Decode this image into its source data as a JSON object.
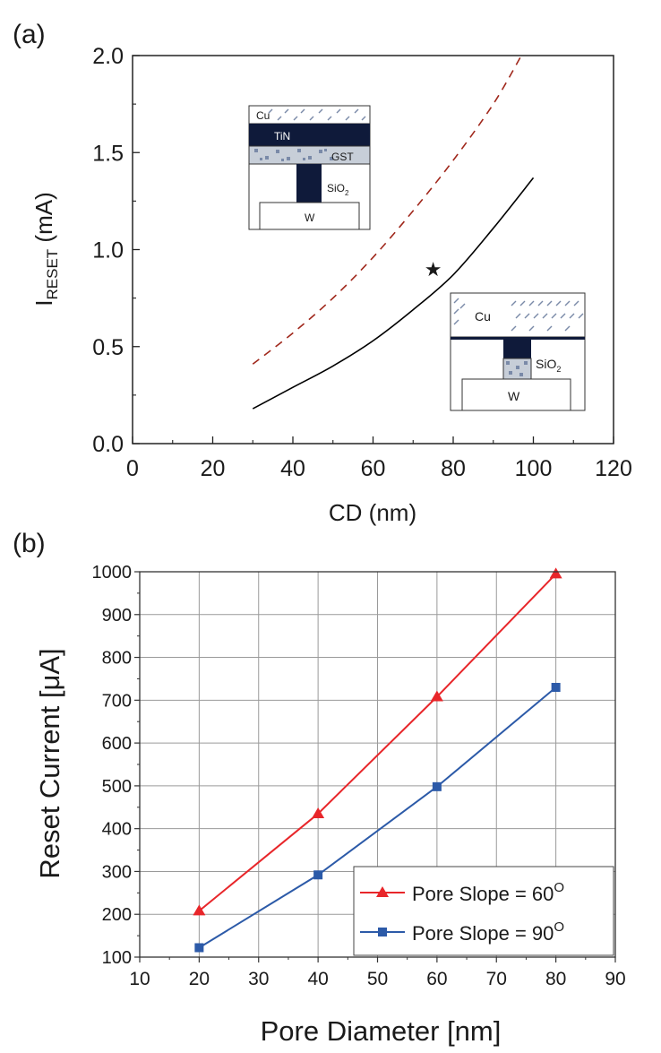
{
  "chart_data": [
    {
      "panel_label": "(a)",
      "type": "line",
      "xlabel": "CD (nm)",
      "ylabel": "I",
      "ylabel_sub": "RESET",
      "ylabel_unit": " (mA)",
      "xlim": [
        0,
        120
      ],
      "ylim": [
        0.0,
        2.0
      ],
      "x_ticks": [
        0,
        20,
        40,
        60,
        80,
        100,
        120
      ],
      "x_tick_labels": [
        "0",
        "20",
        "40",
        "60",
        "80",
        "100",
        "120"
      ],
      "y_ticks": [
        0.0,
        0.5,
        1.0,
        1.5,
        2.0
      ],
      "y_tick_labels": [
        "0.0",
        "0.5",
        "1.0",
        "1.5",
        "2.0"
      ],
      "grid": false,
      "series": [
        {
          "name": "solid",
          "style": "solid",
          "color": "#000000",
          "x": [
            30,
            40,
            50,
            60,
            70,
            80,
            90,
            100
          ],
          "y": [
            0.18,
            0.29,
            0.4,
            0.53,
            0.69,
            0.87,
            1.11,
            1.37
          ]
        },
        {
          "name": "dashed",
          "style": "dashed",
          "color": "#a0281c",
          "x": [
            30,
            40,
            50,
            60,
            70,
            80,
            90,
            97
          ],
          "y": [
            0.41,
            0.57,
            0.75,
            0.96,
            1.2,
            1.46,
            1.75,
            2.0
          ]
        }
      ],
      "marker_point": {
        "symbol": "★",
        "x": 75,
        "y": 0.9
      },
      "inset_top": {
        "labels": {
          "cu": "Cu",
          "tin": "TiN",
          "gst": "GST",
          "sio2": "SiO",
          "sio2_sub": "2",
          "w": "W"
        }
      },
      "inset_bottom": {
        "labels": {
          "cu": "Cu",
          "sio2": "SiO",
          "sio2_sub": "2",
          "w": "W"
        }
      }
    },
    {
      "panel_label": "(b)",
      "type": "line",
      "xlabel": "Pore Diameter [nm]",
      "ylabel": "Reset Current [μA]",
      "xlim": [
        10,
        90
      ],
      "ylim": [
        100,
        1000
      ],
      "x_ticks": [
        10,
        20,
        30,
        40,
        50,
        60,
        70,
        80,
        90
      ],
      "x_tick_labels": [
        "10",
        "20",
        "30",
        "40",
        "50",
        "60",
        "70",
        "80",
        "90"
      ],
      "y_ticks": [
        100,
        200,
        300,
        400,
        500,
        600,
        700,
        800,
        900,
        1000
      ],
      "y_tick_labels": [
        "100",
        "200",
        "300",
        "400",
        "500",
        "600",
        "700",
        "800",
        "900",
        "1000"
      ],
      "grid": true,
      "legend_position": "bottom-right",
      "series": [
        {
          "name": "Pore Slope = 60",
          "name_sup": "O",
          "marker": "triangle",
          "color": "#e8262a",
          "x": [
            20,
            40,
            60,
            80
          ],
          "y": [
            208,
            435,
            708,
            995
          ]
        },
        {
          "name": "Pore Slope = 90",
          "name_sup": "O",
          "marker": "square",
          "color": "#2c5aa8",
          "x": [
            20,
            40,
            60,
            80
          ],
          "y": [
            122,
            292,
            498,
            730
          ]
        }
      ]
    }
  ]
}
